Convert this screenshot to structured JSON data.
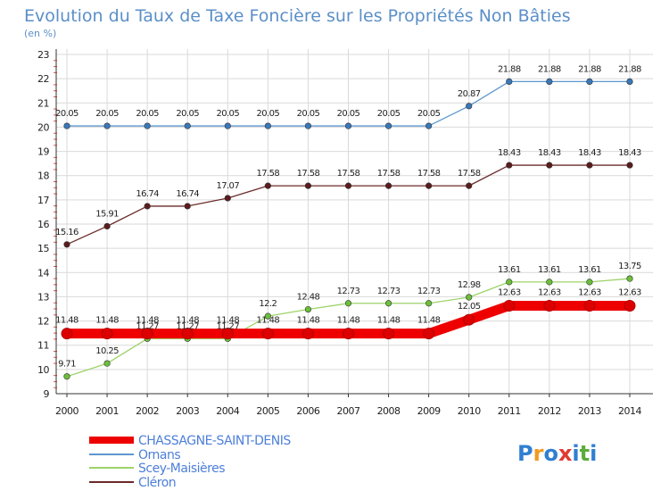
{
  "colors": {
    "background": "#ffffff",
    "plot_background": "#ffffff",
    "grid": "#d9d9d9",
    "axis": "#333333",
    "minor_tick": "#e05050",
    "title": "#5b8fc8",
    "legend_text": "#4d7fd9"
  },
  "brand": {
    "letters": [
      "P",
      "r",
      "o",
      "x",
      "i",
      "t",
      "i"
    ],
    "letter_colors": [
      "#2f7fd1",
      "#f29a1f",
      "#2f7fd1",
      "#e03a2f",
      "#2f7fd1",
      "#5cad3c",
      "#2f7fd1"
    ]
  },
  "chart_data": {
    "type": "line",
    "title": "Evolution du Taux de Taxe Foncière sur les Propriétés Non Bâties",
    "subtitle": "(en %)",
    "x": [
      "2000",
      "2001",
      "2002",
      "2003",
      "2004",
      "2005",
      "2006",
      "2007",
      "2008",
      "2009",
      "2010",
      "2011",
      "2012",
      "2013",
      "2014"
    ],
    "ylim": [
      9,
      23
    ],
    "yticks": [
      "9",
      "10",
      "11",
      "12",
      "13",
      "14",
      "15",
      "16",
      "17",
      "18",
      "19",
      "20",
      "21",
      "22",
      "23"
    ],
    "grid": true,
    "series": [
      {
        "name": "Ornans",
        "color": "#5e97cf",
        "marker": "#3a78b8",
        "values": [
          20.05,
          20.05,
          20.05,
          20.05,
          20.05,
          20.05,
          20.05,
          20.05,
          20.05,
          20.05,
          20.87,
          21.88,
          21.88,
          21.88,
          21.88
        ],
        "labels": [
          "20.05",
          "20.05",
          "20.05",
          "20.05",
          "20.05",
          "20.05",
          "20.05",
          "20.05",
          "20.05",
          "20.05",
          "20.87",
          "21.88",
          "21.88",
          "21.88",
          "21.88"
        ]
      },
      {
        "name": "Cléron",
        "color": "#6b2a2a",
        "marker": "#5a1c1c",
        "values": [
          15.16,
          15.91,
          16.74,
          16.74,
          17.07,
          17.58,
          17.58,
          17.58,
          17.58,
          17.58,
          17.58,
          18.43,
          18.43,
          18.43,
          18.43
        ],
        "labels": [
          "15.16",
          "15.91",
          "16.74",
          "16.74",
          "17.07",
          "17.58",
          "17.58",
          "17.58",
          "17.58",
          "17.58",
          "17.58",
          "18.43",
          "18.43",
          "18.43",
          "18.43"
        ]
      },
      {
        "name": "Scey-Maisières",
        "color": "#9dd36a",
        "marker": "#6bbf3a",
        "values": [
          9.71,
          10.25,
          11.27,
          11.27,
          11.27,
          12.2,
          12.48,
          12.73,
          12.73,
          12.73,
          12.98,
          13.61,
          13.61,
          13.61,
          13.75
        ],
        "labels": [
          "9.71",
          "10.25",
          "11.27",
          "11.27",
          "11.27",
          "12.2",
          "12.48",
          "12.73",
          "12.73",
          "12.73",
          "12.98",
          "13.61",
          "13.61",
          "13.61",
          "13.75"
        ]
      },
      {
        "name": "CHASSAGNE-SAINT-DENIS",
        "color": "#ee0000",
        "marker": "#dd0000",
        "values": [
          11.48,
          11.48,
          11.48,
          11.48,
          11.48,
          11.48,
          11.48,
          11.48,
          11.48,
          11.48,
          12.05,
          12.63,
          12.63,
          12.63,
          12.63
        ],
        "labels": [
          "11.48",
          "11.48",
          "11.48",
          "11.48",
          "11.48",
          "11.48",
          "11.48",
          "11.48",
          "11.48",
          "11.48",
          "12.05",
          "12.63",
          "12.63",
          "12.63",
          "12.63"
        ]
      }
    ],
    "legend": [
      "CHASSAGNE-SAINT-DENIS",
      "Ornans",
      "Scey-Maisières",
      "Cléron"
    ],
    "legend_position": "bottom-left"
  }
}
